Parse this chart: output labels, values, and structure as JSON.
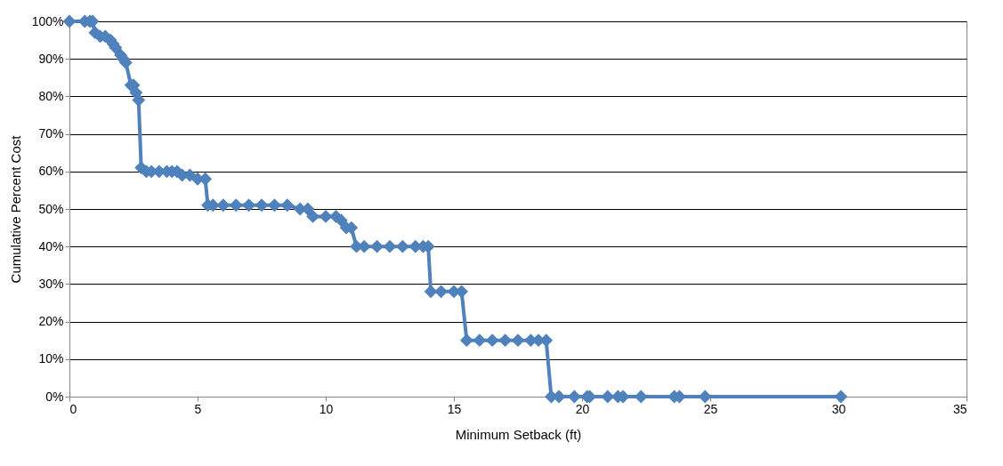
{
  "chart_data": {
    "type": "line",
    "xlabel": "Minimum Setback (ft)",
    "ylabel": "Cumulative Percent Cost",
    "x": [
      0,
      0.6,
      0.8,
      0.9,
      1.0,
      1.2,
      1.4,
      1.6,
      1.7,
      1.8,
      2.0,
      2.1,
      2.2,
      2.4,
      2.5,
      2.6,
      2.7,
      2.8,
      3.0,
      3.2,
      3.5,
      3.8,
      4.0,
      4.2,
      4.4,
      4.7,
      5.0,
      5.3,
      5.4,
      5.6,
      6.0,
      6.5,
      7.0,
      7.5,
      8.0,
      8.5,
      9.0,
      9.3,
      9.5,
      10.0,
      10.4,
      10.6,
      10.8,
      11.0,
      11.2,
      11.5,
      12.0,
      12.5,
      13.0,
      13.5,
      13.8,
      14.0,
      14.1,
      14.5,
      15.0,
      15.3,
      15.5,
      16.0,
      16.5,
      17.0,
      17.5,
      18.0,
      18.3,
      18.6,
      18.8,
      19.1,
      19.7,
      20.2,
      20.3,
      21.0,
      21.4,
      21.6,
      22.3,
      23.6,
      23.8,
      24.8,
      30.1
    ],
    "series": [
      {
        "color": "#4f81bd",
        "values": [
          100,
          100,
          100,
          100,
          97,
          96,
          96,
          95,
          94,
          93,
          91,
          90,
          89,
          83,
          83,
          81,
          79,
          61,
          60,
          60,
          60,
          60,
          60,
          60,
          59,
          59,
          58,
          58,
          51,
          51,
          51,
          51,
          51,
          51,
          51,
          51,
          50,
          50,
          48,
          48,
          48,
          47,
          45,
          45,
          40,
          40,
          40,
          40,
          40,
          40,
          40,
          40,
          28,
          28,
          28,
          28,
          15,
          15,
          15,
          15,
          15,
          15,
          15,
          15,
          0,
          0,
          0,
          0,
          0,
          0,
          0,
          0,
          0,
          0,
          0,
          0,
          0
        ]
      }
    ],
    "xlim": [
      0,
      35
    ],
    "xticks": [
      0,
      5,
      10,
      15,
      20,
      25,
      30,
      35
    ],
    "ylim": [
      0,
      100
    ],
    "yticks": [
      {
        "value": 0,
        "label": "0%"
      },
      {
        "value": 10,
        "label": "10%"
      },
      {
        "value": 20,
        "label": "20%"
      },
      {
        "value": 30,
        "label": "30%"
      },
      {
        "value": 40,
        "label": "40%"
      },
      {
        "value": 50,
        "label": "50%"
      },
      {
        "value": 60,
        "label": "60%"
      },
      {
        "value": 70,
        "label": "70%"
      },
      {
        "value": 80,
        "label": "80%"
      },
      {
        "value": 90,
        "label": "90%"
      },
      {
        "value": 100,
        "label": "100%"
      }
    ],
    "grid": "y",
    "marker": "diamond",
    "line_style": "solid"
  }
}
